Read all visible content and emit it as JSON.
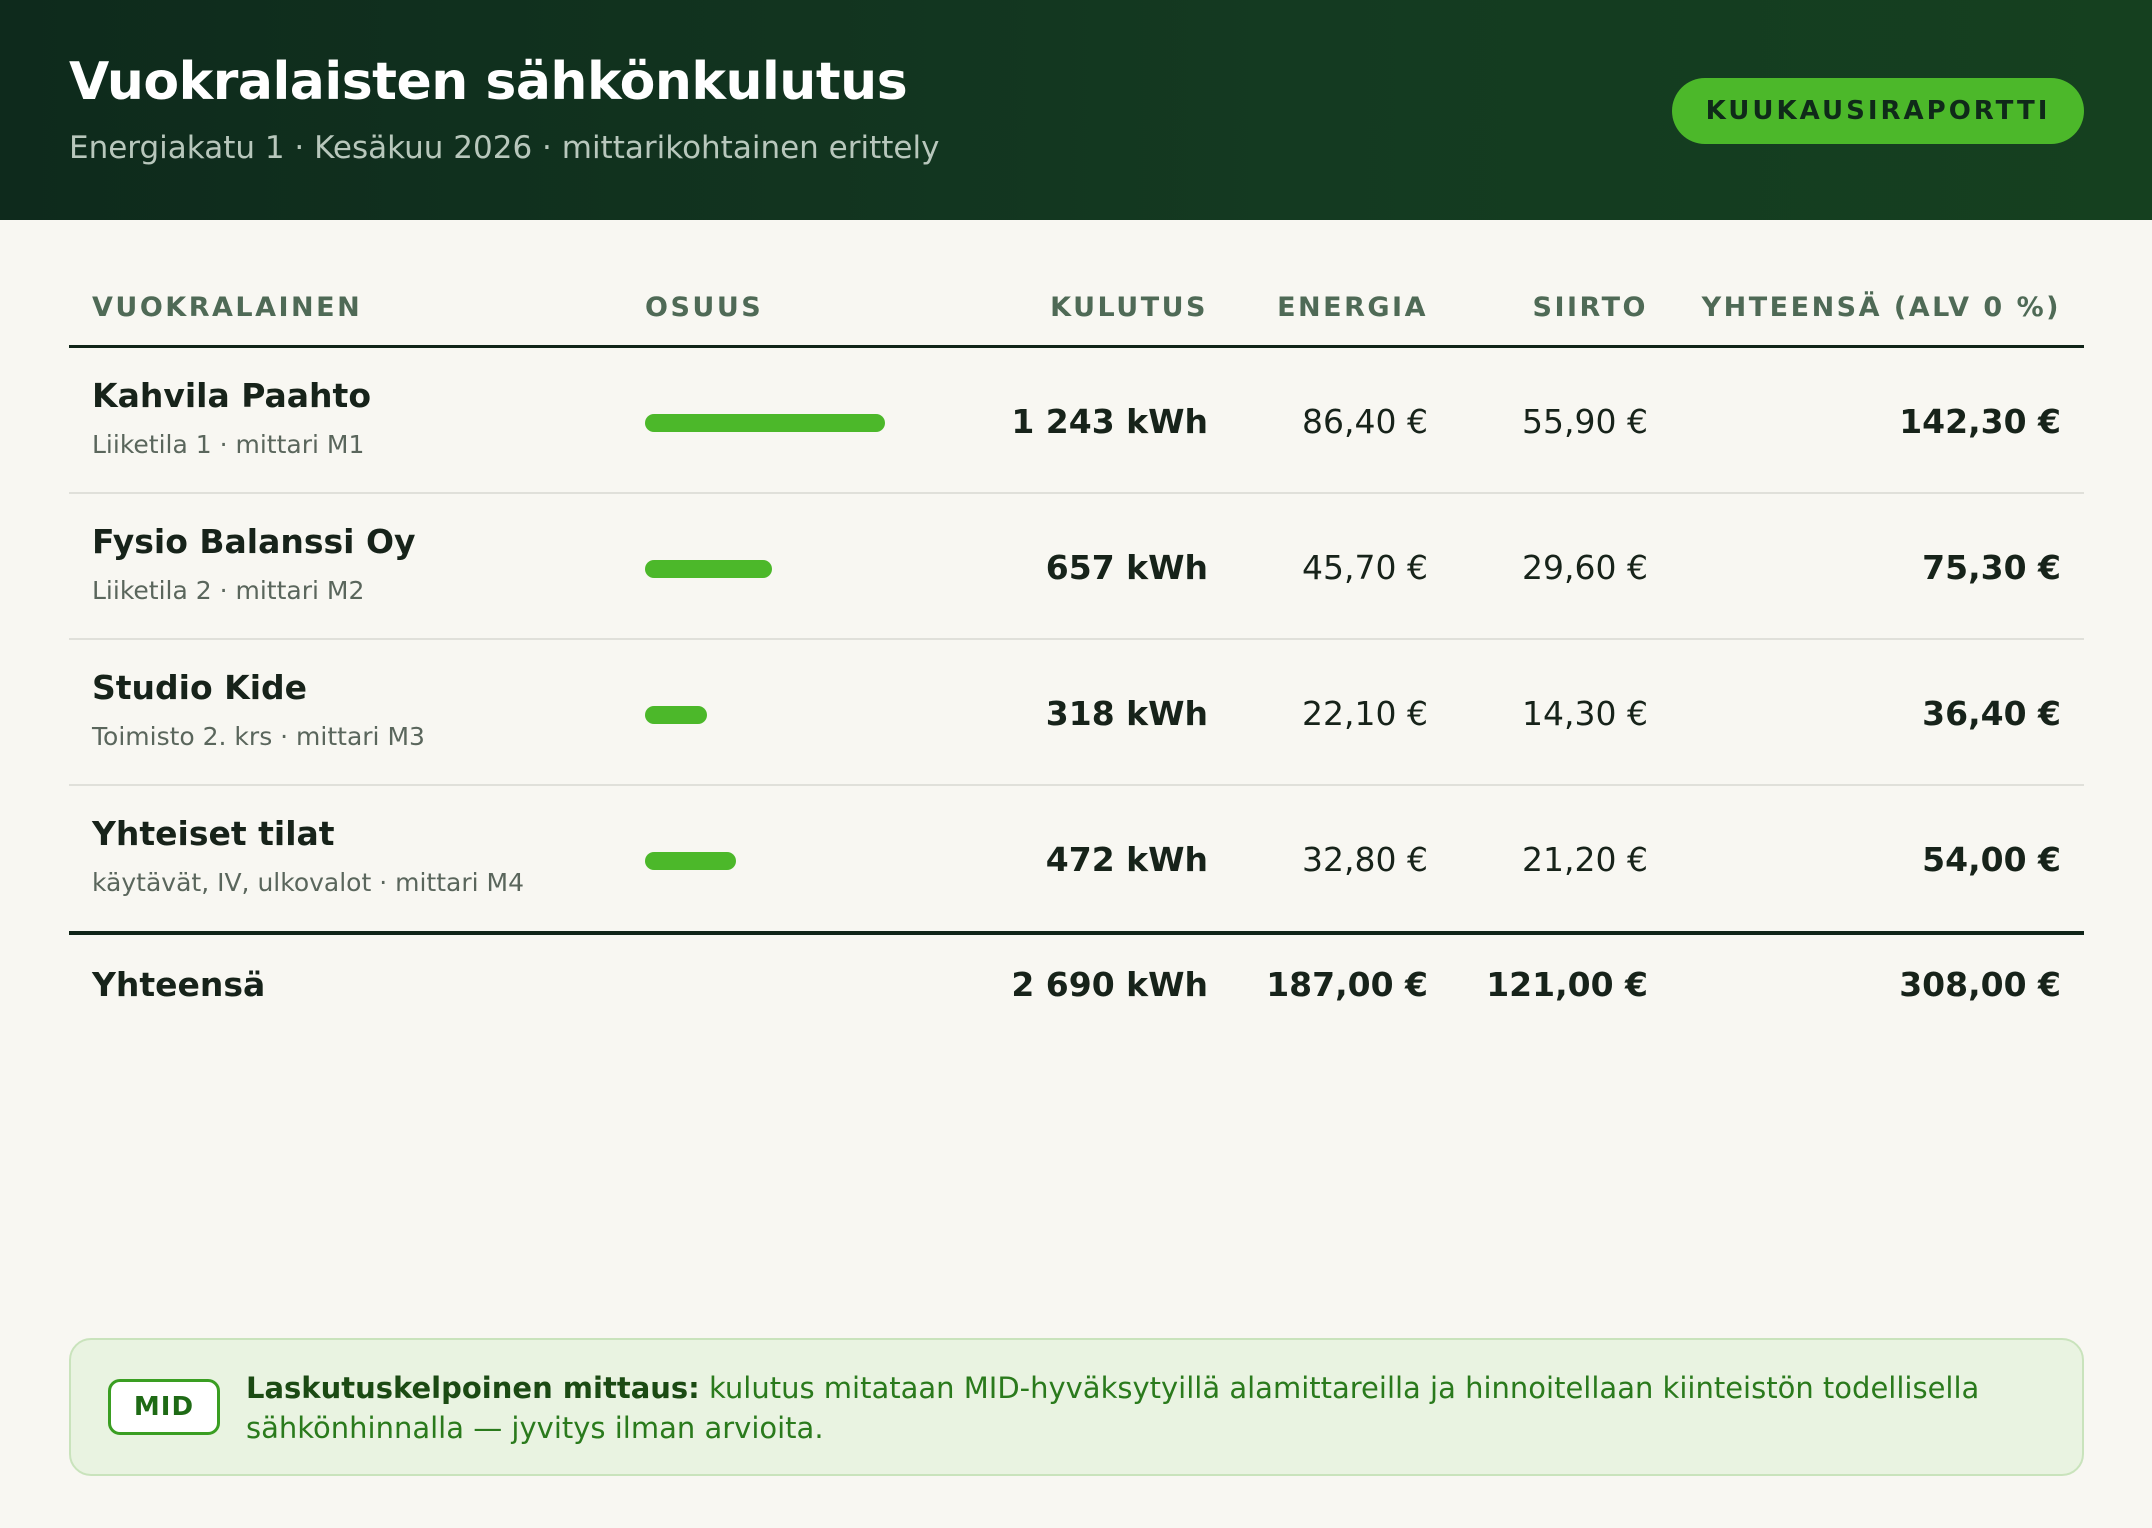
{
  "header": {
    "title": "Vuokralaisten sähkönkulutus",
    "subtitle": "Energiakatu 1 · Kesäkuu 2026 · mittarikohtainen erittely",
    "report_button": "KUUKAUSIRAPORTTI"
  },
  "table": {
    "columns": [
      "VUOKRALAINEN",
      "OSUUS",
      "KULUTUS",
      "ENERGIA",
      "SIIRTO",
      "YHTEENSÄ (ALV 0 %)"
    ],
    "rows": [
      {
        "name": "Kahvila Paahto",
        "detail": "Liiketila 1 · mittari M1",
        "share": 1.0,
        "consumption": "1 243 kWh",
        "energy": "86,40 €",
        "transfer": "55,90 €",
        "total": "142,30 €"
      },
      {
        "name": "Fysio Balanssi Oy",
        "detail": "Liiketila 2 · mittari M2",
        "share": 0.53,
        "consumption": "657 kWh",
        "energy": "45,70 €",
        "transfer": "29,60 €",
        "total": "75,30 €"
      },
      {
        "name": "Studio Kide",
        "detail": "Toimisto 2. krs · mittari M3",
        "share": 0.26,
        "consumption": "318 kWh",
        "energy": "22,10 €",
        "transfer": "14,30 €",
        "total": "36,40 €"
      },
      {
        "name": "Yhteiset tilat",
        "detail": "käytävät, IV, ulkovalot · mittari M4",
        "share": 0.38,
        "consumption": "472 kWh",
        "energy": "32,80 €",
        "transfer": "21,20 €",
        "total": "54,00 €"
      }
    ],
    "totals": {
      "label": "Yhteensä",
      "consumption": "2 690 kWh",
      "energy": "187,00 €",
      "transfer": "121,00 €",
      "total": "308,00 €"
    }
  },
  "note": {
    "badge": "MID",
    "lead": "Laskutuskelpoinen mittaus:",
    "text": " kulutus mitataan MID-hyväksytyillä alamittareilla ja hinnoitellaan kiinteistön todellisella sähkönhinnalla — jyvitys ilman arvioita."
  },
  "colors": {
    "accent": "#4cb82a",
    "header_bg": "#0e2a1c",
    "note_bg": "#e9f3e1"
  }
}
